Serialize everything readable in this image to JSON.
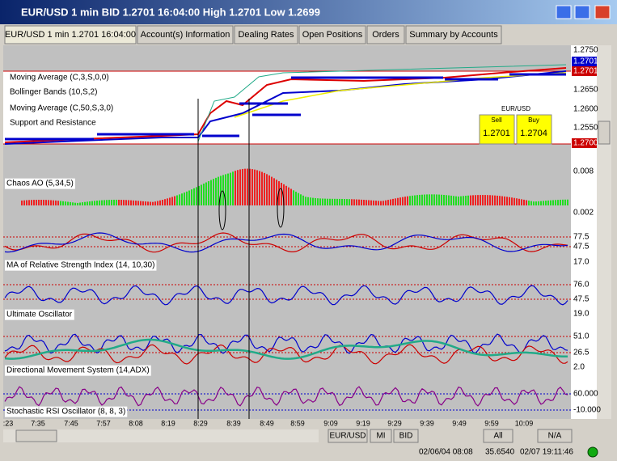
{
  "window": {
    "title": "EUR/USD 1 min BID 1.2701 16:04:00 High 1.2701 Low 1.2699"
  },
  "tabs": [
    "EUR/USD 1 min 1.2701 16:04:00",
    "Account(s) Information",
    "Dealing Rates",
    "Open Positions",
    "Orders",
    "Summary by Accounts"
  ],
  "price_panel": {
    "labels": [
      "Moving Average (C,3,S,0,0)",
      "Bollinger Bands (10,S,2)",
      "Moving Average (C,50,S,3,0)",
      "Support and Resistance"
    ],
    "ticks": [
      "1.2750",
      "1.2650",
      "1.2600",
      "1.2550"
    ],
    "badges": [
      "1.2701",
      "1.2701",
      "1.2700"
    ],
    "rate_box": {
      "symbol": "EUR/USD",
      "sell_label": "Sell",
      "buy_label": "Buy",
      "sell": "1.2701",
      "buy": "1.2704"
    }
  },
  "indicators": [
    {
      "label": "Chaos AO (5,34,5)",
      "ticks": [
        "0.008",
        "0.002"
      ]
    },
    {
      "label": "MA of Relative Strength Index (14, 10,30)",
      "ticks": [
        "77.5",
        "47.5",
        "17.0"
      ]
    },
    {
      "label": "Ultimate Oscillator",
      "ticks": [
        "76.0",
        "47.5",
        "19.0"
      ]
    },
    {
      "label": "Directional Movement System (14,ADX)",
      "ticks": [
        "51.0",
        "26.5",
        "2.0"
      ]
    },
    {
      "label": "Stochastic RSI Oscillator (8, 8, 3)",
      "ticks": [
        "60.000",
        "-10.000"
      ]
    }
  ],
  "time_axis": [
    ":23",
    "7:35",
    "7:45",
    "7:57",
    "8:08",
    "8:19",
    "8:29",
    "8:39",
    "8:49",
    "8:59",
    "9:09",
    "9:19",
    "9:29",
    "9:39",
    "9:49",
    "9:59",
    "10:09"
  ],
  "toolbar": [
    "EUR/USD",
    "MI",
    "BID",
    "All",
    "N/A"
  ],
  "status": [
    "02/06/04 08:08",
    "35.6540",
    "02/07 19:11:46"
  ]
}
